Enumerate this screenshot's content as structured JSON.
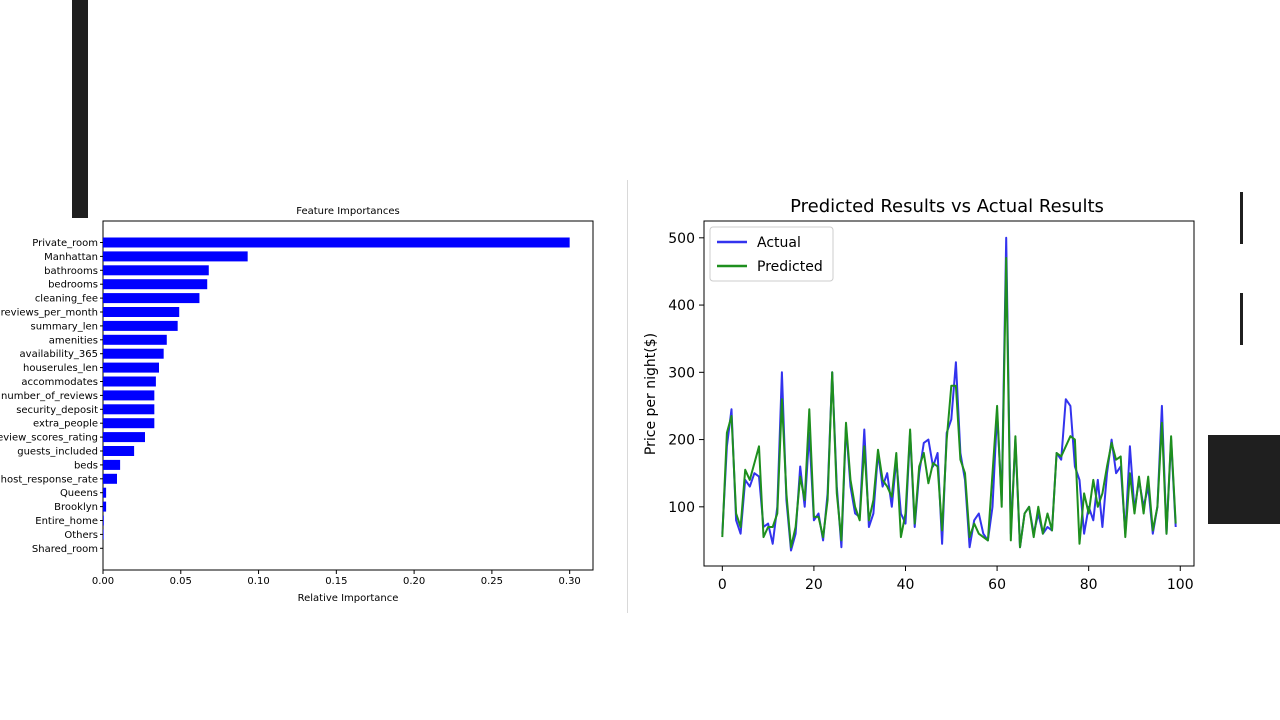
{
  "chart_data": [
    {
      "type": "bar",
      "orientation": "horizontal",
      "title": "Feature Importances",
      "xlabel": "Relative Importance",
      "ylabel": "",
      "xlim": [
        0,
        0.315
      ],
      "xticks": [
        "0.00",
        "0.05",
        "0.10",
        "0.15",
        "0.20",
        "0.25",
        "0.30"
      ],
      "categories": [
        "Private_room",
        "Manhattan",
        "bathrooms",
        "bedrooms",
        "cleaning_fee",
        "reviews_per_month",
        "summary_len",
        "amenities",
        "availability_365",
        "houserules_len",
        "accommodates",
        "number_of_reviews",
        "security_deposit",
        "extra_people",
        "review_scores_rating",
        "guests_included",
        "beds",
        "host_response_rate",
        "Queens",
        "Brooklyn",
        "Entire_home",
        "Others",
        "Shared_room"
      ],
      "values": [
        0.3,
        0.093,
        0.068,
        0.067,
        0.062,
        0.049,
        0.048,
        0.041,
        0.039,
        0.036,
        0.034,
        0.033,
        0.033,
        0.033,
        0.027,
        0.02,
        0.011,
        0.009,
        0.002,
        0.002,
        0.0005,
        0.0003,
        0.0
      ],
      "bar_color": "#0000ff"
    },
    {
      "type": "line",
      "title": "Predicted Results vs Actual Results",
      "xlabel": "",
      "ylabel": "Price per night($)",
      "xlim": [
        -4,
        103
      ],
      "ylim": [
        12,
        525
      ],
      "xticks": [
        0,
        20,
        40,
        60,
        80,
        100
      ],
      "yticks": [
        100,
        200,
        300,
        400,
        500
      ],
      "legend": "top-left",
      "series": [
        {
          "name": "Actual",
          "color": "#3333ee",
          "values": [
            60,
            190,
            245,
            80,
            60,
            140,
            130,
            150,
            145,
            70,
            75,
            45,
            100,
            300,
            110,
            35,
            60,
            160,
            100,
            210,
            80,
            90,
            50,
            120,
            300,
            130,
            40,
            220,
            130,
            90,
            85,
            215,
            70,
            90,
            180,
            130,
            150,
            100,
            170,
            90,
            75,
            210,
            70,
            150,
            195,
            200,
            160,
            180,
            45,
            210,
            230,
            315,
            180,
            140,
            40,
            80,
            90,
            60,
            50,
            100,
            240,
            110,
            500,
            60,
            200,
            40,
            90,
            100,
            60,
            90,
            60,
            70,
            65,
            180,
            170,
            260,
            250,
            160,
            140,
            60,
            100,
            80,
            140,
            70,
            150,
            200,
            150,
            160,
            60,
            190,
            95,
            140,
            100,
            130,
            60,
            100,
            250,
            60,
            200,
            70
          ]
        },
        {
          "name": "Predicted",
          "color": "#1e8f1e",
          "values": [
            55,
            210,
            235,
            90,
            70,
            155,
            140,
            165,
            190,
            55,
            70,
            70,
            90,
            260,
            120,
            40,
            70,
            145,
            110,
            245,
            85,
            85,
            55,
            110,
            300,
            120,
            50,
            225,
            140,
            100,
            80,
            190,
            80,
            110,
            185,
            140,
            130,
            115,
            180,
            55,
            90,
            215,
            75,
            160,
            180,
            135,
            165,
            160,
            65,
            200,
            280,
            280,
            170,
            150,
            55,
            75,
            60,
            55,
            50,
            150,
            250,
            100,
            470,
            50,
            205,
            40,
            90,
            100,
            55,
            100,
            60,
            90,
            65,
            180,
            175,
            190,
            205,
            200,
            45,
            120,
            90,
            140,
            100,
            120,
            160,
            195,
            170,
            175,
            55,
            150,
            90,
            145,
            90,
            145,
            65,
            100,
            225,
            60,
            205,
            75
          ]
        }
      ]
    }
  ]
}
